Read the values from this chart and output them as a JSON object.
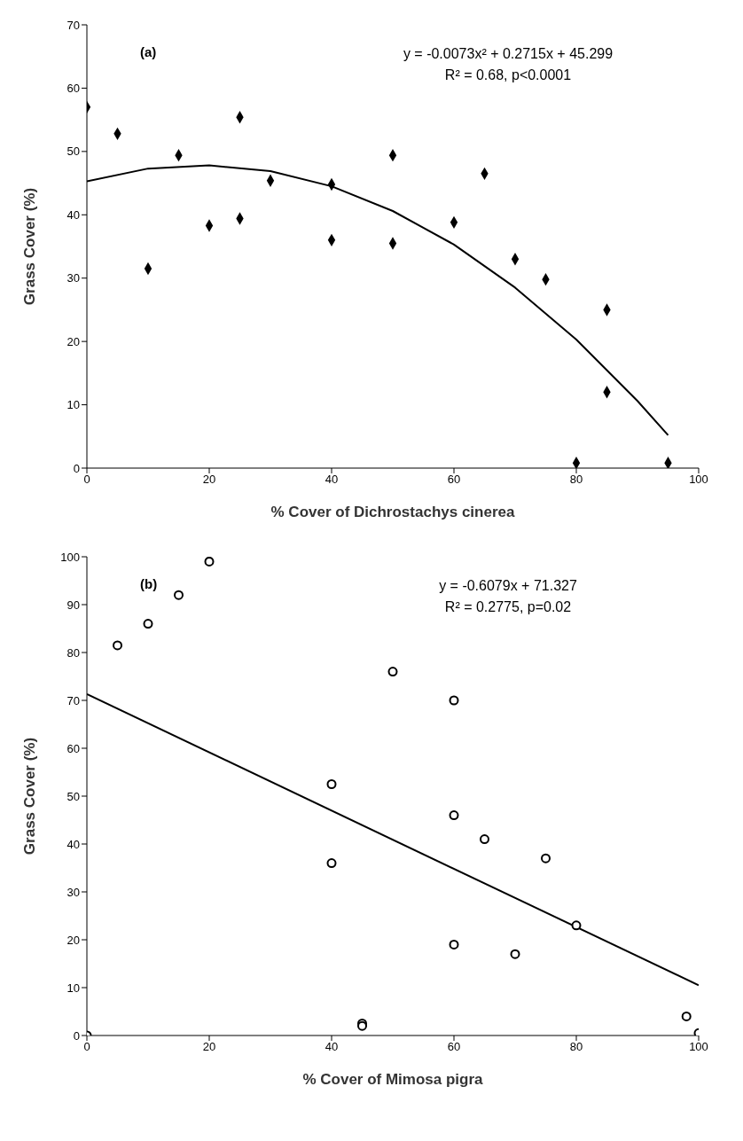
{
  "chart_data": [
    {
      "type": "scatter",
      "xlabel": "% Cover of Dichrostachys cinerea",
      "ylabel": "Grass Cover (%)",
      "annotations": [
        "(a)",
        "y = -0.0073x² + 0.2715x + 45.299",
        "R² = 0.68, p<0.0001"
      ],
      "xlim": [
        0,
        100
      ],
      "xticks": [
        0,
        20,
        40,
        60,
        80,
        100
      ],
      "ylim": [
        0,
        70
      ],
      "yticks": [
        0,
        10,
        20,
        30,
        40,
        50,
        60,
        70
      ],
      "series": [
        {
          "marker": "diamond",
          "color": "#000000",
          "x": [
            0,
            5,
            10,
            15,
            20,
            25,
            25,
            30,
            40,
            40,
            50,
            50,
            60,
            65,
            70,
            75,
            80,
            85,
            85,
            95
          ],
          "values": [
            57,
            52.8,
            31.5,
            49.4,
            38.3,
            55.4,
            39.4,
            45.4,
            44.8,
            36,
            49.4,
            35.5,
            38.8,
            46.5,
            33,
            29.8,
            0.8,
            25,
            12,
            0.8
          ]
        },
        {
          "type": "line",
          "marker": "none",
          "line_style": "solid",
          "color": "#000000",
          "x": [
            0,
            10,
            20,
            30,
            40,
            50,
            60,
            70,
            80,
            90,
            95
          ],
          "values": [
            45.3,
            47.3,
            47.8,
            46.9,
            44.5,
            40.6,
            35.3,
            28.5,
            20.3,
            10.6,
            5.2
          ]
        }
      ]
    },
    {
      "type": "scatter",
      "xlabel": "% Cover of Mimosa pigra",
      "ylabel": "Grass Cover (%)",
      "annotations": [
        "(b)",
        "y = -0.6079x + 71.327",
        "R² = 0.2775, p=0.02"
      ],
      "xlim": [
        0,
        100
      ],
      "xticks": [
        0,
        20,
        40,
        60,
        80,
        100
      ],
      "ylim": [
        0,
        100
      ],
      "yticks": [
        0,
        10,
        20,
        30,
        40,
        50,
        60,
        70,
        80,
        90,
        100
      ],
      "series": [
        {
          "marker": "circle",
          "color": "#000000",
          "x": [
            0,
            5,
            10,
            15,
            20,
            40,
            40,
            45,
            45,
            50,
            60,
            60,
            60,
            65,
            70,
            75,
            80,
            98,
            100
          ],
          "values": [
            0,
            81.5,
            86,
            92,
            99,
            52.5,
            36,
            2.5,
            2,
            76,
            70,
            46,
            19,
            41,
            17,
            37,
            23,
            4,
            0.5
          ]
        },
        {
          "type": "line",
          "marker": "none",
          "line_style": "solid",
          "color": "#000000",
          "x": [
            0,
            100
          ],
          "values": [
            71.3,
            10.5
          ]
        }
      ]
    }
  ]
}
